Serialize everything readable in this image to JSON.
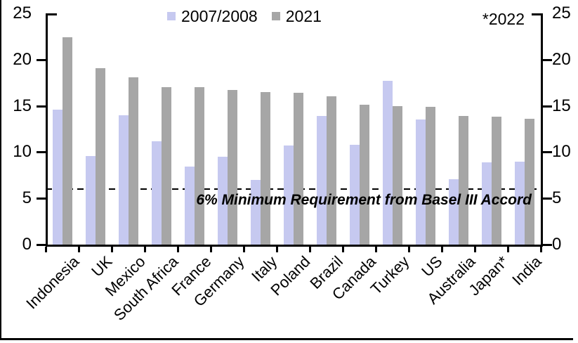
{
  "chart_data": {
    "type": "bar",
    "title": "",
    "xlabel": "",
    "ylabel": "",
    "categories": [
      "Indonesia",
      "UK",
      "Mexico",
      "South Africa",
      "France",
      "Germany",
      "Italy",
      "Poland",
      "Brazil",
      "Canada",
      "Turkey",
      "US",
      "Australia",
      "Japan*",
      "India"
    ],
    "series": [
      {
        "name": "2007/2008",
        "color": "#c6c9f0",
        "values": [
          14.6,
          9.6,
          14.0,
          11.2,
          8.4,
          9.5,
          7.0,
          10.7,
          13.9,
          10.8,
          17.7,
          13.5,
          7.1,
          8.9,
          9.0
        ]
      },
      {
        "name": "2021",
        "color": "#a6a6a6",
        "values": [
          22.4,
          19.1,
          18.1,
          17.0,
          17.0,
          16.7,
          16.5,
          16.4,
          16.0,
          15.1,
          15.0,
          14.9,
          13.9,
          13.8,
          13.6
        ]
      }
    ],
    "ylim": [
      0,
      25
    ],
    "yticks": [
      0,
      5,
      10,
      15,
      20,
      25
    ],
    "dual_y_axis": true,
    "grid": false,
    "legend_position": "top-center",
    "reference_line": {
      "value": 6,
      "style": "dashed",
      "color": "#000000",
      "label": "6% Minimum Requirement from Basel III Accord"
    },
    "annotation": "*2022",
    "axis_color": "#000000",
    "text_color": "#000000"
  }
}
